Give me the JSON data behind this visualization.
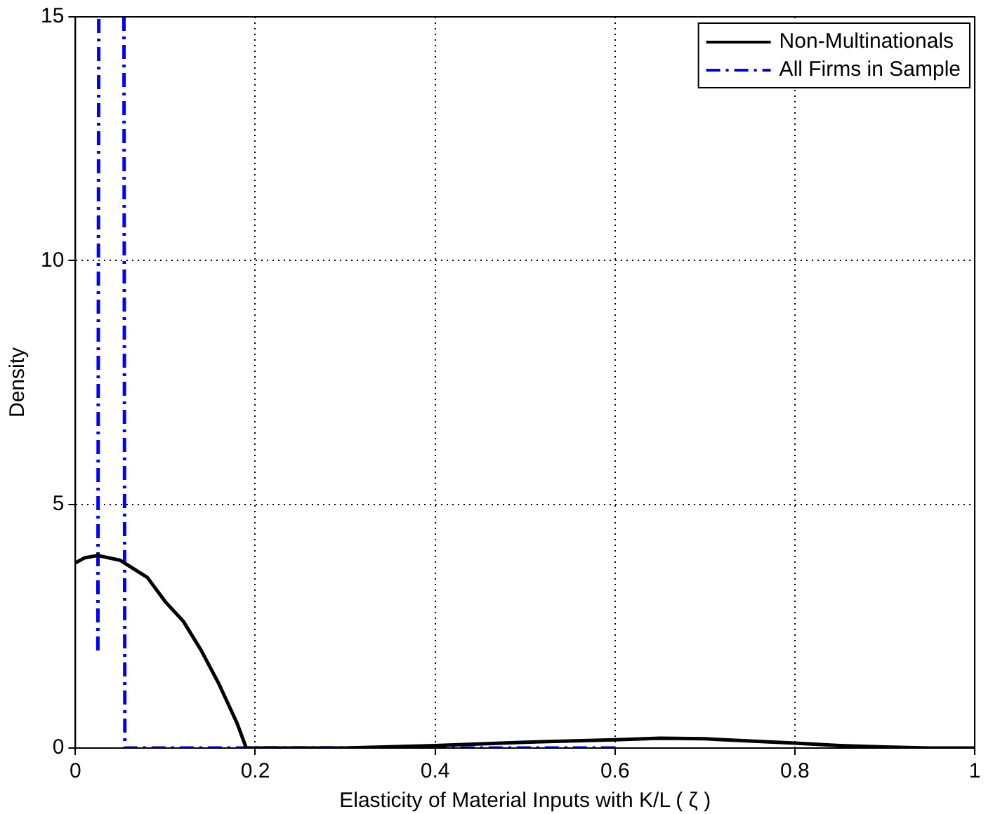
{
  "chart_data": {
    "type": "line",
    "xlabel": "Elasticity of Material Inputs with K/L ( ζ )",
    "ylabel": "Density",
    "xlim": [
      0,
      1
    ],
    "xticks": [
      0,
      0.2,
      0.4,
      0.6,
      0.8,
      1
    ],
    "ylim": [
      0,
      15
    ],
    "yticks": [
      0,
      5,
      10,
      15
    ],
    "grid": true,
    "legend": "top right",
    "marker": "none",
    "series": [
      {
        "name": "Non-Multinationals",
        "color": "#000000",
        "line_style": "solid",
        "x": [
          0,
          0.01,
          0.025,
          0.05,
          0.08,
          0.1,
          0.12,
          0.14,
          0.16,
          0.18,
          0.19,
          0.3,
          0.4,
          0.5,
          0.6,
          0.65,
          0.7,
          0.8,
          0.85,
          0.9,
          0.95,
          1
        ],
        "values": [
          3.8,
          3.9,
          3.95,
          3.85,
          3.5,
          3.0,
          2.6,
          2.0,
          1.3,
          0.5,
          0,
          0,
          0.05,
          0.12,
          0.17,
          0.2,
          0.19,
          0.1,
          0.05,
          0.02,
          0,
          0
        ]
      },
      {
        "name": "All Firms in Sample",
        "color": "#0000ff",
        "line_style": "dashdot",
        "x": [
          0.025,
          0.026,
          0.04,
          0.054,
          0.055,
          0.3,
          0.6
        ],
        "values": [
          2.0,
          15,
          null,
          15,
          0,
          0,
          0
        ]
      }
    ]
  }
}
